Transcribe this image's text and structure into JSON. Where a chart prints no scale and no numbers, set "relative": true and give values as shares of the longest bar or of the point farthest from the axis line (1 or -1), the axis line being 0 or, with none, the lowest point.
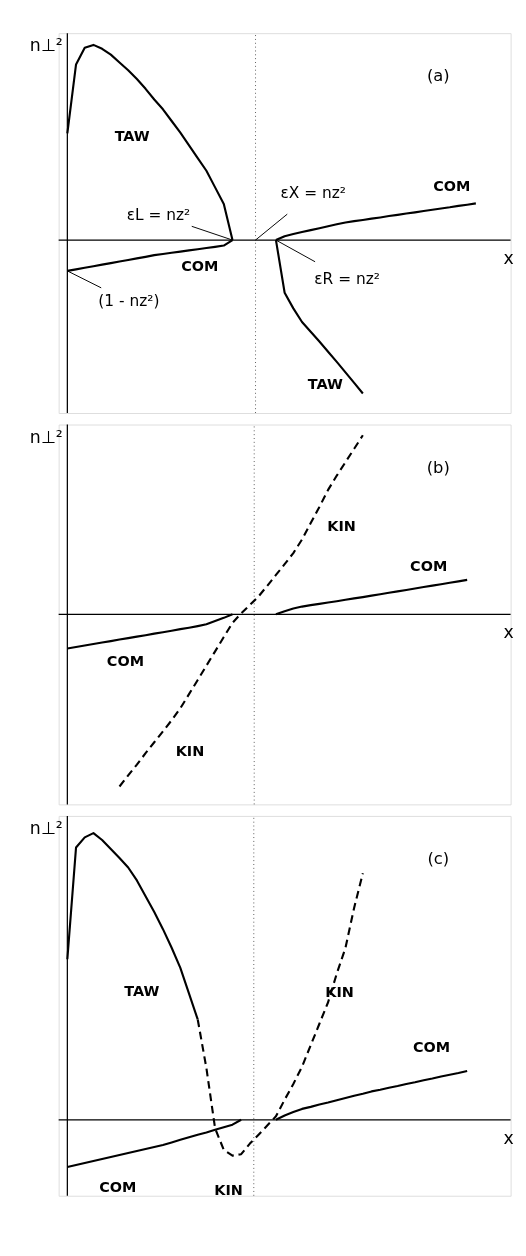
{
  "chart_data": [
    {
      "type": "line",
      "title": "(a)",
      "ylabel": "n⊥²",
      "xlabel": "x",
      "relative": true,
      "categories": [
        null,
        null,
        null,
        null,
        null,
        null,
        null,
        null,
        null,
        null,
        null,
        null,
        null,
        null,
        null,
        null,
        null,
        null,
        null,
        null,
        null,
        null,
        null,
        null,
        null,
        null,
        null,
        null,
        null,
        null,
        null,
        null,
        null,
        null,
        null,
        null,
        null,
        null,
        null,
        null,
        null,
        null,
        null,
        null,
        null,
        null,
        null,
        null,
        null,
        null
      ],
      "series": [
        {
          "name": "TAW",
          "color": "#000000",
          "line_style": "solid",
          "values": [
            0.547,
            0.9,
            0.985,
            1,
            0.98,
            0.95,
            0.91,
            0.87,
            0.825,
            0.775,
            0.72,
            0.67,
            0.61,
            0.55,
            0.485,
            0.42,
            0.355,
            0.27,
            0.185,
            0,
            null,
            null,
            null,
            null,
            null,
            null,
            null,
            null,
            null,
            null,
            null,
            null,
            null,
            null,
            null,
            null,
            null,
            null,
            null,
            null,
            null,
            null,
            null,
            null,
            null,
            null,
            null,
            null,
            null,
            null
          ]
        },
        {
          "name": "COM",
          "color": "#000000",
          "line_style": "solid",
          "values": [
            -0.158,
            -0.15,
            -0.142,
            -0.134,
            -0.126,
            -0.118,
            -0.11,
            -0.102,
            -0.094,
            -0.086,
            -0.077,
            -0.071,
            -0.065,
            -0.059,
            -0.053,
            -0.047,
            -0.041,
            -0.035,
            -0.028,
            0,
            null,
            null,
            null,
            null,
            null,
            null,
            null,
            null,
            null,
            null,
            null,
            null,
            null,
            null,
            null,
            null,
            null,
            null,
            null,
            null,
            null,
            null,
            null,
            null,
            null,
            null,
            null,
            null,
            null,
            null
          ]
        },
        {
          "name": "COM",
          "color": "#000000",
          "line_style": "solid",
          "values": [
            null,
            null,
            null,
            null,
            null,
            null,
            null,
            null,
            null,
            null,
            null,
            null,
            null,
            null,
            null,
            null,
            null,
            null,
            null,
            null,
            null,
            null,
            null,
            null,
            0,
            0.02,
            0.031,
            0.041,
            0.051,
            0.061,
            0.071,
            0.081,
            0.09,
            0.097,
            0.103,
            0.11,
            0.116,
            0.123,
            0.129,
            0.136,
            0.142,
            0.149,
            0.155,
            0.162,
            0.168,
            0.175,
            0.181,
            0.188,
            null,
            null
          ]
        },
        {
          "name": "TAW",
          "color": "#000000",
          "line_style": "solid",
          "values": [
            null,
            null,
            null,
            null,
            null,
            null,
            null,
            null,
            null,
            null,
            null,
            null,
            null,
            null,
            null,
            null,
            null,
            null,
            null,
            null,
            null,
            null,
            null,
            null,
            0,
            -0.27,
            -0.35,
            -0.42,
            -0.47,
            -0.52,
            -0.572,
            -0.624,
            -0.678,
            -0.732,
            -0.786,
            null,
            null,
            null,
            null,
            null,
            null,
            null,
            null,
            null,
            null,
            null,
            null,
            null,
            null,
            null
          ]
        }
      ],
      "annotations": [
        "εL = nz²",
        "εX = nz²",
        "εR = nz²",
        "(1 - nz²)"
      ]
    },
    {
      "type": "line",
      "title": "(b)",
      "ylabel": "n⊥²",
      "xlabel": "x",
      "relative": true,
      "categories": [
        null,
        null,
        null,
        null,
        null,
        null,
        null,
        null,
        null,
        null,
        null,
        null,
        null,
        null,
        null,
        null,
        null,
        null,
        null,
        null,
        null,
        null,
        null,
        null,
        null,
        null,
        null,
        null,
        null,
        null,
        null,
        null,
        null,
        null,
        null,
        null,
        null,
        null,
        null,
        null,
        null,
        null,
        null,
        null,
        null,
        null,
        null,
        null,
        null,
        null
      ],
      "series": [
        {
          "name": "COM",
          "color": "#000000",
          "line_style": "solid",
          "values": [
            -0.191,
            -0.183,
            -0.174,
            -0.166,
            -0.158,
            -0.15,
            -0.141,
            -0.133,
            -0.125,
            -0.117,
            -0.108,
            -0.1,
            -0.092,
            -0.083,
            -0.075,
            -0.066,
            -0.056,
            -0.038,
            -0.02,
            0,
            null,
            null,
            null,
            null,
            null,
            null,
            null,
            null,
            null,
            null,
            null,
            null,
            null,
            null,
            null,
            null,
            null,
            null,
            null,
            null,
            null,
            null,
            null,
            null,
            null,
            null,
            null,
            null,
            null,
            null
          ]
        },
        {
          "name": "COM",
          "color": "#000000",
          "line_style": "solid",
          "values": [
            null,
            null,
            null,
            null,
            null,
            null,
            null,
            null,
            null,
            null,
            null,
            null,
            null,
            null,
            null,
            null,
            null,
            null,
            null,
            null,
            null,
            null,
            null,
            null,
            0,
            0.017,
            0.032,
            0.043,
            0.051,
            0.058,
            0.066,
            0.073,
            0.081,
            0.089,
            0.096,
            0.104,
            0.112,
            0.12,
            0.128,
            0.136,
            0.144,
            0.152,
            0.16,
            0.168,
            0.176,
            0.184,
            0.192,
            null,
            null,
            null
          ]
        },
        {
          "name": "KIN",
          "color": "#000000",
          "line_style": "dashed",
          "values": [
            null,
            null,
            null,
            null,
            null,
            null,
            -0.962,
            -0.9,
            -0.84,
            -0.776,
            -0.715,
            -0.654,
            -0.592,
            -0.525,
            -0.446,
            -0.367,
            -0.287,
            -0.207,
            -0.127,
            -0.048,
            0.005,
            0.052,
            0.1,
            0.159,
            0.22,
            0.28,
            0.342,
            0.418,
            0.51,
            0.6,
            0.695,
            0.775,
            0.85,
            0.925,
            1,
            null,
            null,
            null,
            null,
            null,
            null,
            null,
            null,
            null,
            null,
            null,
            null,
            null,
            null,
            null
          ]
        }
      ]
    },
    {
      "type": "line",
      "title": "(c)",
      "ylabel": "n⊥²",
      "xlabel": "x",
      "relative": true,
      "categories": [
        null,
        null,
        null,
        null,
        null,
        null,
        null,
        null,
        null,
        null,
        null,
        null,
        null,
        null,
        null,
        null,
        null,
        null,
        null,
        null,
        null,
        null,
        null,
        null,
        null,
        null,
        null,
        null,
        null,
        null,
        null,
        null,
        null,
        null,
        null,
        null,
        null,
        null,
        null,
        null,
        null,
        null,
        null,
        null,
        null,
        null,
        null,
        null,
        null,
        null
      ],
      "series": [
        {
          "name": "TAW",
          "color": "#000000",
          "line_style": "solid",
          "values": [
            0.56,
            0.95,
            0.985,
            1,
            0.976,
            0.945,
            0.913,
            0.88,
            0.835,
            0.78,
            0.725,
            0.665,
            0.6,
            0.53,
            0.44,
            0.35,
            null,
            null,
            null,
            null,
            null,
            null,
            null,
            null,
            null,
            null,
            null,
            null,
            null,
            null,
            null,
            null,
            null,
            null,
            null,
            null,
            null,
            null,
            null,
            null,
            null,
            null,
            null,
            null,
            null,
            null,
            null,
            null,
            null,
            null
          ]
        },
        {
          "name": "COM",
          "color": "#000000",
          "line_style": "solid",
          "values": [
            -0.165,
            -0.158,
            -0.151,
            -0.144,
            -0.137,
            -0.13,
            -0.123,
            -0.116,
            -0.109,
            -0.102,
            -0.095,
            -0.088,
            -0.079,
            -0.07,
            -0.061,
            -0.052,
            -0.044,
            -0.035,
            -0.026,
            -0.017,
            0,
            null,
            null,
            null,
            null,
            null,
            null,
            null,
            null,
            null,
            null,
            null,
            null,
            null,
            null,
            null,
            null,
            null,
            null,
            null,
            null,
            null,
            null,
            null,
            null,
            null,
            null,
            null,
            null,
            null
          ]
        },
        {
          "name": "COM",
          "color": "#000000",
          "line_style": "solid",
          "values": [
            null,
            null,
            null,
            null,
            null,
            null,
            null,
            null,
            null,
            null,
            null,
            null,
            null,
            null,
            null,
            null,
            null,
            null,
            null,
            null,
            null,
            null,
            null,
            null,
            0,
            0.015,
            0.027,
            0.038,
            0.045,
            0.053,
            0.06,
            0.068,
            0.076,
            0.084,
            0.091,
            0.099,
            0.105,
            0.112,
            0.118,
            0.125,
            0.131,
            0.138,
            0.144,
            0.151,
            0.157,
            0.163,
            0.17,
            null,
            null,
            null
          ]
        },
        {
          "name": "KIN",
          "color": "#000000",
          "line_style": "dashed",
          "values": [
            null,
            null,
            null,
            null,
            null,
            null,
            null,
            null,
            null,
            null,
            null,
            null,
            null,
            null,
            null,
            0.35,
            0.18,
            -0.03,
            -0.105,
            -0.125,
            -0.12,
            -0.083,
            -0.052,
            -0.02,
            0.012,
            0.07,
            0.125,
            0.185,
            0.26,
            0.335,
            0.41,
            0.51,
            0.6,
            0.74,
            0.86,
            null,
            null,
            null,
            null,
            null,
            null,
            null,
            null,
            null,
            null,
            null,
            null,
            null,
            null,
            null
          ]
        }
      ]
    }
  ]
}
